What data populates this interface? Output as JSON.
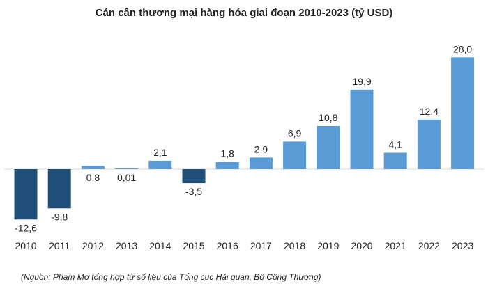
{
  "chart_data": {
    "type": "bar",
    "title": "Cán cân thương mại hàng hóa giai đoạn 2010-2023 (tỷ USD)",
    "categories": [
      "2010",
      "2011",
      "2012",
      "2013",
      "2014",
      "2015",
      "2016",
      "2017",
      "2018",
      "2019",
      "2020",
      "2021",
      "2022",
      "2023"
    ],
    "values": [
      -12.6,
      -9.8,
      0.8,
      0.01,
      2.1,
      -3.5,
      1.8,
      2.9,
      6.9,
      10.8,
      19.9,
      4.1,
      12.4,
      28.0
    ],
    "data_labels": [
      "-12,6",
      "-9,8",
      "0,8",
      "0,01",
      "2,1",
      "-3,5",
      "1,8",
      "2,9",
      "6,9",
      "10,8",
      "19,9",
      "4,1",
      "12,4",
      "28,0"
    ],
    "ylim": [
      -13,
      28
    ],
    "grid": false,
    "legend": "none",
    "colors": {
      "positive": "#5b9bd5",
      "negative": "#1f4e79",
      "axis": "#d9d9d9"
    }
  },
  "source_note": "(Nguồn: Phạm Mơ tổng hợp từ số liệu của Tổng cục Hải quan, Bộ Công Thương)"
}
